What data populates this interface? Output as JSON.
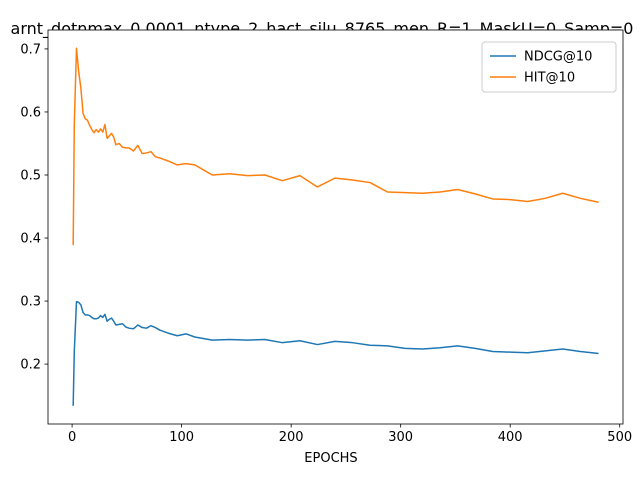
{
  "chart_data": {
    "type": "line",
    "title": "arnt_dotnmax_0.0001_ntype_2_hact_silu_8765_men_R=1_MaskU=0_Samp=0",
    "xlabel": "EPOCHS",
    "ylabel": "",
    "xlim": [
      -22,
      503
    ],
    "ylim": [
      0.105,
      0.73
    ],
    "xticks": [
      0,
      100,
      200,
      300,
      400,
      500
    ],
    "yticks": [
      0.2,
      0.3,
      0.4,
      0.5,
      0.6,
      0.7
    ],
    "grid": false,
    "legend_position": "top-right",
    "series": [
      {
        "name": "NDCG@10",
        "color": "#1f77b4",
        "x": [
          1,
          2,
          4,
          6,
          8,
          10,
          12,
          14,
          16,
          18,
          20,
          22,
          24,
          26,
          28,
          30,
          32,
          34,
          36,
          38,
          40,
          43,
          46,
          49,
          52,
          56,
          60,
          64,
          68,
          72,
          76,
          80,
          88,
          96,
          104,
          112,
          128,
          144,
          160,
          176,
          192,
          208,
          224,
          240,
          256,
          272,
          288,
          304,
          320,
          336,
          352,
          368,
          384,
          400,
          416,
          432,
          448,
          464,
          480
        ],
        "y": [
          0.135,
          0.22,
          0.299,
          0.298,
          0.294,
          0.282,
          0.278,
          0.278,
          0.277,
          0.274,
          0.272,
          0.272,
          0.273,
          0.277,
          0.274,
          0.279,
          0.268,
          0.271,
          0.273,
          0.268,
          0.262,
          0.263,
          0.264,
          0.259,
          0.257,
          0.256,
          0.262,
          0.258,
          0.257,
          0.261,
          0.258,
          0.254,
          0.249,
          0.245,
          0.248,
          0.243,
          0.238,
          0.239,
          0.238,
          0.239,
          0.234,
          0.237,
          0.231,
          0.236,
          0.234,
          0.23,
          0.229,
          0.225,
          0.224,
          0.226,
          0.229,
          0.225,
          0.22,
          0.219,
          0.218,
          0.221,
          0.224,
          0.22,
          0.217
        ]
      },
      {
        "name": "HIT@10",
        "color": "#ff7f0e",
        "x": [
          1,
          2,
          4,
          6,
          8,
          10,
          12,
          14,
          16,
          18,
          20,
          22,
          24,
          26,
          28,
          30,
          32,
          34,
          36,
          38,
          40,
          43,
          46,
          49,
          52,
          56,
          60,
          64,
          68,
          72,
          76,
          80,
          88,
          96,
          104,
          112,
          120,
          128,
          144,
          160,
          176,
          192,
          208,
          224,
          240,
          256,
          272,
          288,
          304,
          320,
          336,
          352,
          368,
          384,
          400,
          416,
          432,
          448,
          464,
          480
        ],
        "y": [
          0.39,
          0.58,
          0.701,
          0.664,
          0.638,
          0.598,
          0.589,
          0.587,
          0.579,
          0.572,
          0.567,
          0.572,
          0.568,
          0.573,
          0.568,
          0.58,
          0.558,
          0.562,
          0.566,
          0.56,
          0.548,
          0.55,
          0.544,
          0.543,
          0.543,
          0.538,
          0.547,
          0.534,
          0.535,
          0.537,
          0.529,
          0.527,
          0.522,
          0.516,
          0.518,
          0.516,
          0.508,
          0.5,
          0.502,
          0.499,
          0.5,
          0.491,
          0.499,
          0.481,
          0.495,
          0.492,
          0.488,
          0.473,
          0.472,
          0.471,
          0.473,
          0.477,
          0.47,
          0.462,
          0.461,
          0.458,
          0.463,
          0.471,
          0.463,
          0.457
        ]
      }
    ]
  }
}
